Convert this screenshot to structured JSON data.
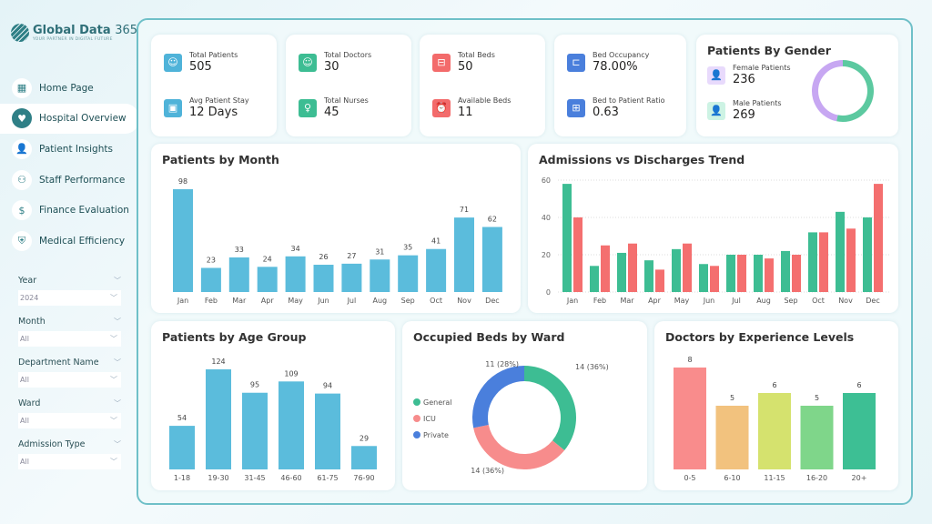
{
  "brand": {
    "name": "Global Data",
    "name_suffix": "365",
    "tagline": "YOUR PARTNER IN DIGITAL FUTURE"
  },
  "nav": [
    {
      "label": "Home Page",
      "icon": "grid-icon",
      "glyph": "▦"
    },
    {
      "label": "Hospital Overview",
      "icon": "heart-plus-icon",
      "glyph": "♥",
      "active": true
    },
    {
      "label": "Patient Insights",
      "icon": "patient-icon",
      "glyph": "👤"
    },
    {
      "label": "Staff Performance",
      "icon": "staff-icon",
      "glyph": "⚇"
    },
    {
      "label": "Finance Evaluation",
      "icon": "finance-icon",
      "glyph": "$"
    },
    {
      "label": "Medical Efficiency",
      "icon": "shield-icon",
      "glyph": "⛨"
    }
  ],
  "filters": [
    {
      "label": "Year",
      "value": "2024"
    },
    {
      "label": "Month",
      "value": "All"
    },
    {
      "label": "Department Name",
      "value": "All"
    },
    {
      "label": "Ward",
      "value": "All"
    },
    {
      "label": "Admission Type",
      "value": "All"
    }
  ],
  "kpis": [
    [
      {
        "label": "Total Patients",
        "value": "505",
        "color": "#4fb3d9",
        "icon": "patient-icon",
        "glyph": "☺"
      },
      {
        "label": "Avg Patient Stay",
        "value": "12 Days",
        "color": "#4fb3d9",
        "icon": "calendar-icon",
        "glyph": "▣"
      }
    ],
    [
      {
        "label": "Total Doctors",
        "value": "30",
        "color": "#3dbd93",
        "icon": "doctor-icon",
        "glyph": "☺"
      },
      {
        "label": "Total Nurses",
        "value": "45",
        "color": "#3dbd93",
        "icon": "nurse-icon",
        "glyph": "♀"
      }
    ],
    [
      {
        "label": "Total Beds",
        "value": "50",
        "color": "#f36b6b",
        "icon": "bed-icon",
        "glyph": "⊟"
      },
      {
        "label": "Available Beds",
        "value": "11",
        "color": "#f36b6b",
        "icon": "alarm-icon",
        "glyph": "⏰"
      }
    ],
    [
      {
        "label": "Bed Occupancy",
        "value": "78.00%",
        "color": "#4a7fdc",
        "icon": "bed-occupancy-icon",
        "glyph": "⊏"
      },
      {
        "label": "Bed to Patient Ratio",
        "value": "0.63",
        "color": "#4a7fdc",
        "icon": "bed-ratio-icon",
        "glyph": "⊞"
      }
    ]
  ],
  "gender": {
    "title": "Patients By Gender",
    "female_label": "Female Patients",
    "female_value": "236",
    "male_label": "Male Patients",
    "male_value": "269",
    "female_color": "#c7a7f2",
    "male_color": "#5cc9a0"
  },
  "chart_data": [
    {
      "type": "bar",
      "title": "Patients by Month",
      "categories": [
        "Jan",
        "Feb",
        "Mar",
        "Apr",
        "May",
        "Jun",
        "Jul",
        "Aug",
        "Sep",
        "Oct",
        "Nov",
        "Dec"
      ],
      "values": [
        98,
        23,
        33,
        24,
        34,
        26,
        27,
        31,
        35,
        41,
        71,
        62
      ],
      "color": "#5bbcdc",
      "data_labels": true
    },
    {
      "type": "bar",
      "title": "Admissions vs Discharges Trend",
      "categories": [
        "Jan",
        "Feb",
        "Mar",
        "Apr",
        "May",
        "Jun",
        "Jul",
        "Aug",
        "Sep",
        "Oct",
        "Nov",
        "Dec"
      ],
      "series": [
        {
          "values": [
            58,
            14,
            21,
            17,
            23,
            15,
            20,
            20,
            22,
            32,
            43,
            40
          ],
          "color": "#3dbd93"
        },
        {
          "values": [
            40,
            25,
            26,
            12,
            26,
            14,
            20,
            18,
            20,
            32,
            34,
            58
          ],
          "color": "#f46f6f"
        }
      ],
      "ylim": [
        0,
        60
      ],
      "yticks": [
        "0",
        "20",
        "40",
        "60"
      ],
      "grid": true
    },
    {
      "type": "bar",
      "title": "Patients by Age Group",
      "categories": [
        "1-18",
        "19-30",
        "31-45",
        "46-60",
        "61-75",
        "76-90"
      ],
      "values": [
        54,
        124,
        95,
        109,
        94,
        29
      ],
      "color": "#5bbcdc",
      "data_labels": true
    },
    {
      "type": "pie",
      "title": "Occupied Beds by Ward",
      "categories": [
        "General",
        "ICU",
        "Private"
      ],
      "values": [
        14,
        14,
        11
      ],
      "labels": [
        "14 (36%)",
        "14 (36%)",
        "11 (28%)"
      ],
      "colors": [
        "#3dbd93",
        "#f78c8c",
        "#4a7fdc"
      ],
      "legend": "left"
    },
    {
      "type": "bar",
      "title": "Doctors by Experience Levels",
      "categories": [
        "0-5",
        "6-10",
        "11-15",
        "16-20",
        "20+"
      ],
      "values": [
        8,
        5,
        6,
        5,
        6
      ],
      "colors": [
        "#f98c8c",
        "#f2c27e",
        "#d5e26e",
        "#7fd68a",
        "#3dbf94"
      ],
      "data_labels": true
    }
  ]
}
